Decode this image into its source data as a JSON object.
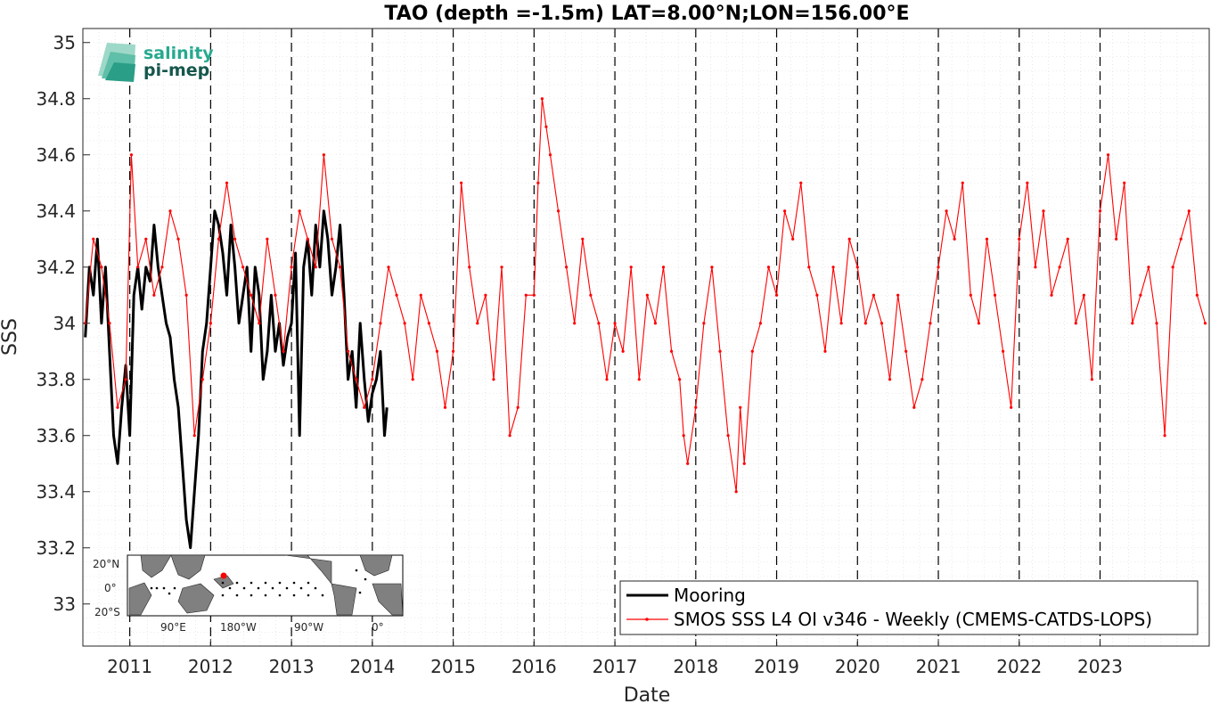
{
  "chart_data": {
    "type": "line",
    "title": "TAO (depth =-1.5m) LAT=8.00°N;LON=156.00°E",
    "xlabel": "Date",
    "ylabel": "SSS",
    "xlim": [
      2010.42,
      2024.35
    ],
    "ylim": [
      32.85,
      35.05
    ],
    "x_ticks": [
      "2011",
      "2012",
      "2013",
      "2014",
      "2015",
      "2016",
      "2017",
      "2018",
      "2019",
      "2020",
      "2021",
      "2022",
      "2023"
    ],
    "x_tick_values": [
      2011,
      2012,
      2013,
      2014,
      2015,
      2016,
      2017,
      2018,
      2019,
      2020,
      2021,
      2022,
      2023
    ],
    "y_ticks": [
      "33",
      "33.2",
      "33.4",
      "33.6",
      "33.8",
      "34",
      "34.2",
      "34.4",
      "34.6",
      "34.8",
      "35"
    ],
    "y_tick_values": [
      33,
      33.2,
      33.4,
      33.6,
      33.8,
      34,
      34.2,
      34.4,
      34.6,
      34.8,
      35
    ],
    "grid": true,
    "legend_position": "bottom-right",
    "series": [
      {
        "name": "Mooring",
        "color": "#000000",
        "x": [
          2010.45,
          2010.5,
          2010.55,
          2010.6,
          2010.65,
          2010.7,
          2010.75,
          2010.8,
          2010.85,
          2010.9,
          2010.95,
          2011.0,
          2011.05,
          2011.1,
          2011.15,
          2011.2,
          2011.25,
          2011.3,
          2011.35,
          2011.4,
          2011.45,
          2011.5,
          2011.55,
          2011.6,
          2011.65,
          2011.7,
          2011.75,
          2011.8,
          2011.85,
          2011.9,
          2011.95,
          2012.0,
          2012.05,
          2012.1,
          2012.15,
          2012.2,
          2012.25,
          2012.3,
          2012.35,
          2012.4,
          2012.45,
          2012.5,
          2012.55,
          2012.6,
          2012.65,
          2012.7,
          2012.75,
          2012.8,
          2012.85,
          2012.9,
          2012.95,
          2013.0,
          2013.05,
          2013.1,
          2013.15,
          2013.2,
          2013.25,
          2013.3,
          2013.35,
          2013.4,
          2013.45,
          2013.5,
          2013.55,
          2013.6,
          2013.65,
          2013.7,
          2013.75,
          2013.8,
          2013.85,
          2013.9,
          2013.95,
          2014.0,
          2014.05,
          2014.1,
          2014.15,
          2014.18
        ],
        "y": [
          33.95,
          34.2,
          34.1,
          34.3,
          34.0,
          34.2,
          33.9,
          33.6,
          33.5,
          33.7,
          33.85,
          33.6,
          34.1,
          34.2,
          34.05,
          34.2,
          34.15,
          34.35,
          34.2,
          34.1,
          34.0,
          33.95,
          33.8,
          33.7,
          33.5,
          33.3,
          33.2,
          33.4,
          33.6,
          33.9,
          34.0,
          34.2,
          34.4,
          34.35,
          34.25,
          34.1,
          34.35,
          34.2,
          34.0,
          34.1,
          34.2,
          33.9,
          34.2,
          34.1,
          33.8,
          33.9,
          34.1,
          33.9,
          34.0,
          33.85,
          33.95,
          34.0,
          34.25,
          33.6,
          34.2,
          34.3,
          34.1,
          34.35,
          34.2,
          34.4,
          34.3,
          34.1,
          34.2,
          34.35,
          34.1,
          33.8,
          33.9,
          33.7,
          34.0,
          33.8,
          33.65,
          33.75,
          33.8,
          33.9,
          33.6,
          33.7
        ]
      },
      {
        "name": "SMOS SSS L4 OI v346 - Weekly (CMEMS-CATDS-LOPS)",
        "color": "#ff0000",
        "x": [
          2010.45,
          2010.55,
          2010.65,
          2010.75,
          2010.85,
          2010.95,
          2011.02,
          2011.1,
          2011.2,
          2011.3,
          2011.4,
          2011.5,
          2011.6,
          2011.7,
          2011.8,
          2011.9,
          2012.0,
          2012.1,
          2012.2,
          2012.3,
          2012.4,
          2012.5,
          2012.6,
          2012.7,
          2012.8,
          2012.9,
          2013.0,
          2013.1,
          2013.2,
          2013.3,
          2013.4,
          2013.5,
          2013.6,
          2013.7,
          2013.8,
          2013.9,
          2014.0,
          2014.1,
          2014.2,
          2014.3,
          2014.4,
          2014.5,
          2014.6,
          2014.7,
          2014.8,
          2014.9,
          2015.0,
          2015.1,
          2015.2,
          2015.3,
          2015.4,
          2015.5,
          2015.6,
          2015.7,
          2015.8,
          2015.9,
          2016.0,
          2016.05,
          2016.1,
          2016.15,
          2016.2,
          2016.3,
          2016.4,
          2016.5,
          2016.6,
          2016.7,
          2016.8,
          2016.9,
          2017.0,
          2017.1,
          2017.2,
          2017.3,
          2017.4,
          2017.5,
          2017.6,
          2017.7,
          2017.8,
          2017.85,
          2017.9,
          2018.0,
          2018.1,
          2018.2,
          2018.3,
          2018.4,
          2018.5,
          2018.55,
          2018.6,
          2018.7,
          2018.8,
          2018.9,
          2019.0,
          2019.1,
          2019.2,
          2019.3,
          2019.4,
          2019.5,
          2019.6,
          2019.7,
          2019.8,
          2019.9,
          2020.0,
          2020.1,
          2020.2,
          2020.3,
          2020.4,
          2020.5,
          2020.6,
          2020.7,
          2020.8,
          2020.9,
          2021.0,
          2021.1,
          2021.2,
          2021.3,
          2021.4,
          2021.5,
          2021.6,
          2021.7,
          2021.8,
          2021.9,
          2022.0,
          2022.1,
          2022.2,
          2022.3,
          2022.4,
          2022.5,
          2022.6,
          2022.7,
          2022.8,
          2022.9,
          2023.0,
          2023.1,
          2023.2,
          2023.3,
          2023.4,
          2023.5,
          2023.6,
          2023.7,
          2023.8,
          2023.9,
          2024.0,
          2024.1,
          2024.2,
          2024.3
        ],
        "y": [
          34.0,
          34.3,
          34.2,
          34.0,
          33.7,
          33.8,
          34.6,
          34.2,
          34.3,
          34.1,
          34.2,
          34.4,
          34.3,
          34.1,
          33.6,
          33.8,
          34.0,
          34.3,
          34.5,
          34.3,
          34.2,
          34.1,
          34.0,
          34.3,
          34.1,
          33.9,
          34.2,
          34.4,
          34.3,
          34.2,
          34.6,
          34.3,
          34.2,
          33.9,
          33.8,
          33.7,
          33.8,
          34.0,
          34.2,
          34.1,
          34.0,
          33.8,
          34.1,
          34.0,
          33.9,
          33.7,
          33.9,
          34.5,
          34.2,
          34.0,
          34.1,
          33.8,
          34.2,
          33.6,
          33.7,
          34.1,
          34.1,
          34.5,
          34.8,
          34.7,
          34.6,
          34.4,
          34.2,
          34.0,
          34.3,
          34.1,
          34.0,
          33.8,
          34.0,
          33.9,
          34.2,
          33.8,
          34.1,
          34.0,
          34.2,
          33.9,
          33.8,
          33.6,
          33.5,
          33.7,
          34.0,
          34.2,
          33.9,
          33.6,
          33.4,
          33.7,
          33.5,
          33.9,
          34.0,
          34.2,
          34.1,
          34.4,
          34.3,
          34.5,
          34.2,
          34.1,
          33.9,
          34.2,
          34.0,
          34.3,
          34.2,
          34.0,
          34.1,
          34.0,
          33.8,
          34.1,
          33.9,
          33.7,
          33.8,
          34.0,
          34.2,
          34.4,
          34.3,
          34.5,
          34.1,
          34.0,
          34.3,
          34.1,
          33.9,
          33.7,
          34.3,
          34.5,
          34.2,
          34.4,
          34.1,
          34.2,
          34.3,
          34.0,
          34.1,
          33.8,
          34.4,
          34.6,
          34.3,
          34.5,
          34.0,
          34.1,
          34.2,
          34.0,
          33.6,
          34.2,
          34.3,
          34.4,
          34.1,
          34.0
        ]
      }
    ]
  },
  "logo": {
    "line1": "salinity",
    "line2": "pi-mep"
  },
  "inset_map": {
    "lat_labels": [
      "20°N",
      "0°",
      "20°S"
    ],
    "lon_labels": [
      "90°E",
      "180°W",
      "90°W",
      "0°"
    ]
  }
}
